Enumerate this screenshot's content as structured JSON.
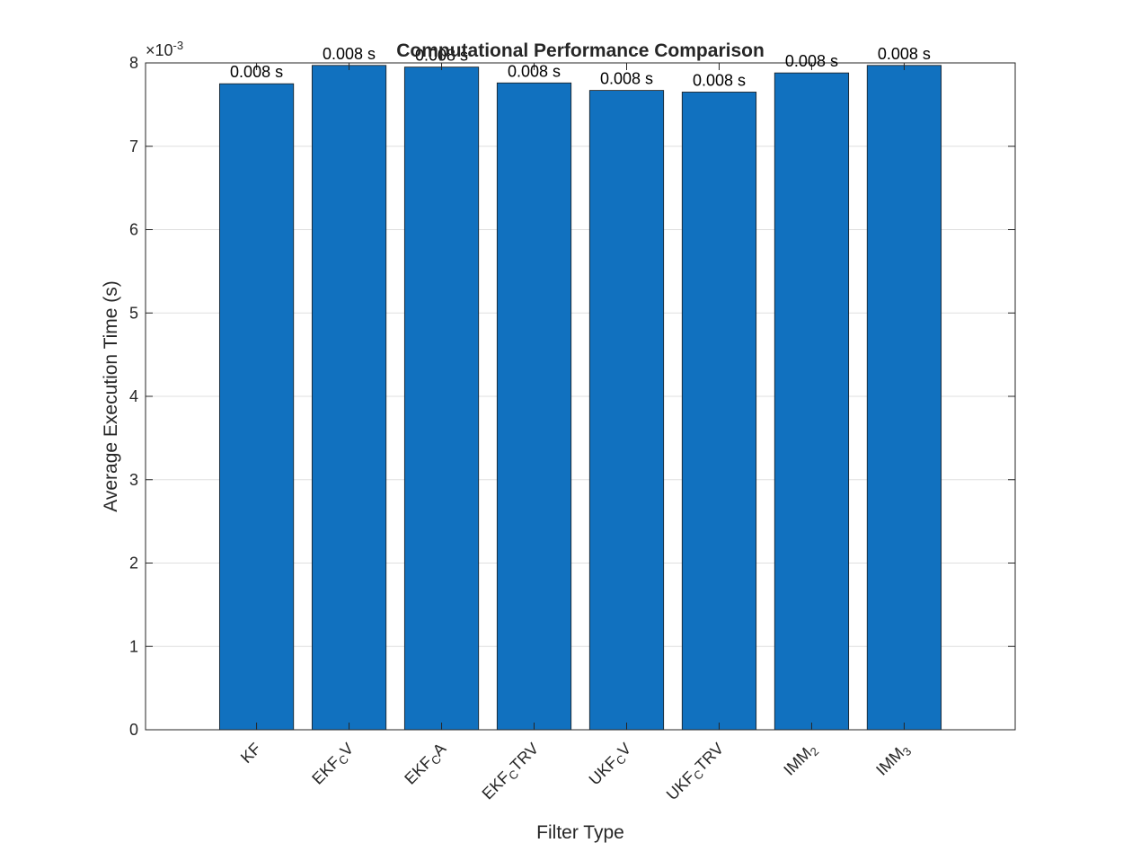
{
  "chart_data": {
    "type": "bar",
    "title": "Computational Performance Comparison",
    "xlabel": "Filter Type",
    "ylabel": "Average Execution Time (s)",
    "exponent_label": "×10",
    "exponent_power": "-3",
    "categories": [
      {
        "base": "KF",
        "sub": "",
        "suffix": ""
      },
      {
        "base": "EKF",
        "sub": "C",
        "suffix": "V"
      },
      {
        "base": "EKF",
        "sub": "C",
        "suffix": "A"
      },
      {
        "base": "EKF",
        "sub": "C",
        "suffix": "TRV"
      },
      {
        "base": "UKF",
        "sub": "C",
        "suffix": "V"
      },
      {
        "base": "UKF",
        "sub": "C",
        "suffix": "TRV"
      },
      {
        "base": "IMM",
        "sub": "2",
        "suffix": ""
      },
      {
        "base": "IMM",
        "sub": "3",
        "suffix": ""
      }
    ],
    "values": [
      0.00775,
      0.00797,
      0.00795,
      0.00776,
      0.00767,
      0.00765,
      0.00788,
      0.00797
    ],
    "data_labels": [
      "0.008 s",
      "0.008 s",
      "0.008 s",
      "0.008 s",
      "0.008 s",
      "0.008 s",
      "0.008 s",
      "0.008 s"
    ],
    "yticks": [
      0,
      1,
      2,
      3,
      4,
      5,
      6,
      7,
      8
    ],
    "ytick_scale": 0.001,
    "ylim": [
      0,
      0.008
    ],
    "grid": true,
    "bar_color": "#1171bf"
  }
}
